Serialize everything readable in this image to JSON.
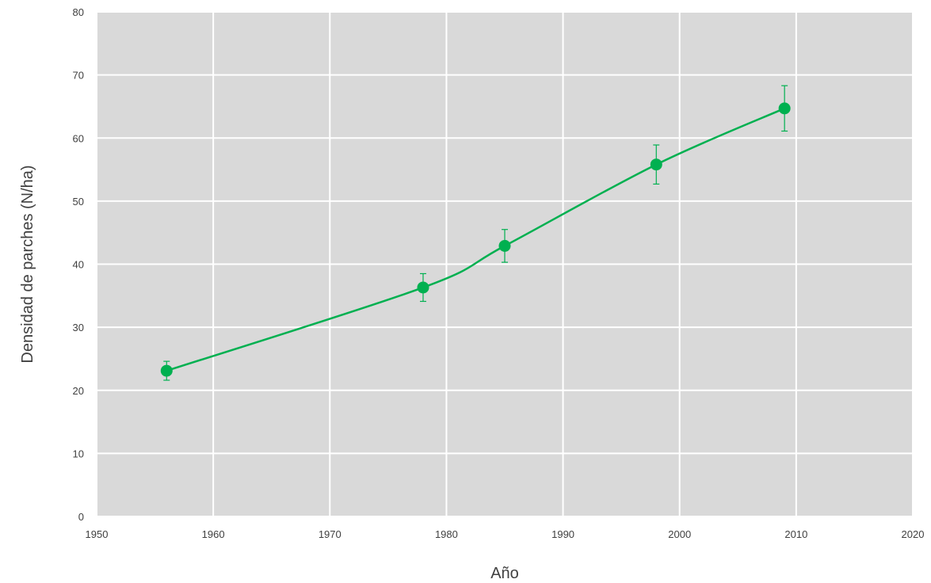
{
  "chart_data": {
    "type": "line",
    "title": "",
    "xlabel": "Año",
    "ylabel": "Densidad de parches (N/ha)",
    "xlim": [
      1950,
      2020
    ],
    "ylim": [
      0,
      80
    ],
    "x_ticks": [
      1950,
      1960,
      1970,
      1980,
      1990,
      2000,
      2010,
      2020
    ],
    "y_ticks": [
      0,
      10,
      20,
      30,
      40,
      50,
      60,
      70,
      80
    ],
    "grid": true,
    "legend": "none",
    "colors": {
      "series": "#00b050",
      "plot_background": "#d9d9d9",
      "grid": "#ffffff"
    },
    "series": [
      {
        "x": [
          1956,
          1978,
          1985,
          1998,
          2009
        ],
        "y": [
          23.1,
          36.3,
          42.9,
          55.8,
          64.7
        ],
        "error": [
          1.5,
          2.2,
          2.6,
          3.1,
          3.6
        ]
      }
    ]
  }
}
